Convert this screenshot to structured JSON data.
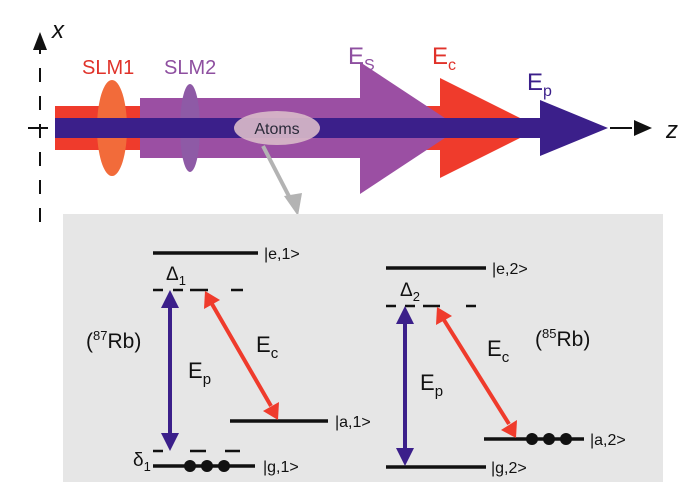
{
  "axes": {
    "x_label": "x",
    "z_label": "z"
  },
  "beam_labels": {
    "slm1": "SLM1",
    "slm2": "SLM2",
    "es_main": "E",
    "es_sub": "S",
    "ec_main": "E",
    "ec_sub": "c",
    "ep_main": "E",
    "ep_sub": "p",
    "atoms": "Atoms"
  },
  "levels": {
    "left": {
      "isotope_open": "(",
      "isotope_mass": "87",
      "isotope_elem": "Rb)",
      "e_state": "|e,1>",
      "a_state": "|a,1>",
      "g_state": "|g,1>",
      "delta_main": "Δ",
      "delta_sub": "1",
      "small_delta_main": "δ",
      "small_delta_sub": "1",
      "ep_main": "E",
      "ep_sub": "p",
      "ec_main": "E",
      "ec_sub": "c"
    },
    "right": {
      "isotope_open": "(",
      "isotope_mass": "85",
      "isotope_elem": "Rb)",
      "e_state": "|e,2>",
      "a_state": "|a,2>",
      "g_state": "|g,2>",
      "delta_main": "Δ",
      "delta_sub": "2",
      "ep_main": "E",
      "ep_sub": "p",
      "ec_main": "E",
      "ec_sub": "c"
    }
  },
  "colors": {
    "probe": "#3b1f8a",
    "control": "#ef3b2c",
    "signal": "#9b4fa3",
    "slm1": "#f26b3a",
    "slm2": "#8e5aa6",
    "panel_bg": "#e6e6e6",
    "atoms_ellipse": "#d8b8c8",
    "pointer": "#b3b3b3"
  }
}
